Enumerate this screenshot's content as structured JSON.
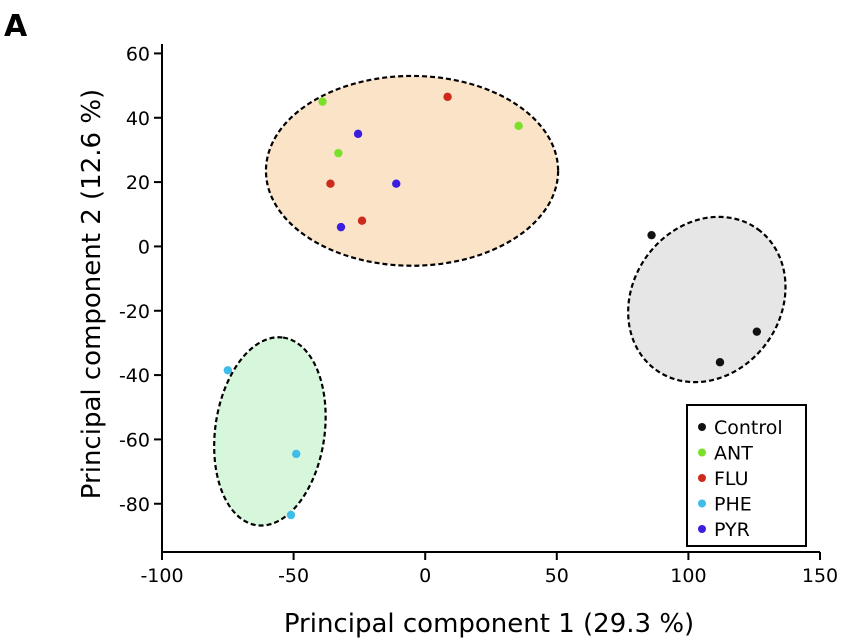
{
  "panel_label": "A",
  "colors": {
    "Control": "#111111",
    "ANT": "#7be02a",
    "FLU": "#cc2a1a",
    "PHE": "#3fbde8",
    "PYR": "#3a1fe0",
    "ellipse_orange": "#fbe3c8",
    "ellipse_gray": "#e6e6e6",
    "ellipse_green": "#d7f7dc"
  },
  "chart_data": {
    "type": "scatter",
    "title": "",
    "xlabel": "Principal component 1 (29.3 %)",
    "ylabel": "Principal component 2 (12.6 %)",
    "xlim": [
      -100,
      150
    ],
    "ylim": [
      -95,
      62
    ],
    "xticks": [
      -100,
      -50,
      0,
      50,
      100,
      150
    ],
    "yticks": [
      -80,
      -60,
      -40,
      -20,
      0,
      20,
      40,
      60
    ],
    "grid": false,
    "legend_position": "bottom-right",
    "series": [
      {
        "name": "Control",
        "color": "#111111",
        "points": [
          [
            86,
            3.5
          ],
          [
            112,
            -36
          ],
          [
            126,
            -26.5
          ]
        ]
      },
      {
        "name": "ANT",
        "color": "#7be02a",
        "points": [
          [
            -39,
            45
          ],
          [
            -33,
            29
          ],
          [
            35.5,
            37.5
          ]
        ]
      },
      {
        "name": "FLU",
        "color": "#cc2a1a",
        "points": [
          [
            8.5,
            46.5
          ],
          [
            -36,
            19.5
          ],
          [
            -24,
            8
          ]
        ]
      },
      {
        "name": "PHE",
        "color": "#3fbde8",
        "points": [
          [
            -75,
            -38.5
          ],
          [
            -49,
            -64.5
          ],
          [
            -51,
            -83.5
          ]
        ]
      },
      {
        "name": "PYR",
        "color": "#3a1fe0",
        "points": [
          [
            -25.5,
            35
          ],
          [
            -11,
            19.5
          ],
          [
            -32,
            6
          ]
        ]
      }
    ],
    "clusters": [
      {
        "members": [
          "ANT",
          "FLU",
          "PYR"
        ],
        "fill": "#fbe3c8",
        "center": [
          -5,
          23.5
        ],
        "radii": [
          55.5,
          29.5
        ],
        "rotation_deg": 0
      },
      {
        "members": [
          "Control"
        ],
        "fill": "#e6e6e6",
        "center": [
          107,
          -16.5
        ],
        "radii": [
          33,
          23
        ],
        "rotation_deg": 54
      },
      {
        "members": [
          "PHE"
        ],
        "fill": "#d7f7dc",
        "center": [
          -59,
          -57.5
        ],
        "radii": [
          36,
          17
        ],
        "rotation_deg": 82
      }
    ]
  }
}
